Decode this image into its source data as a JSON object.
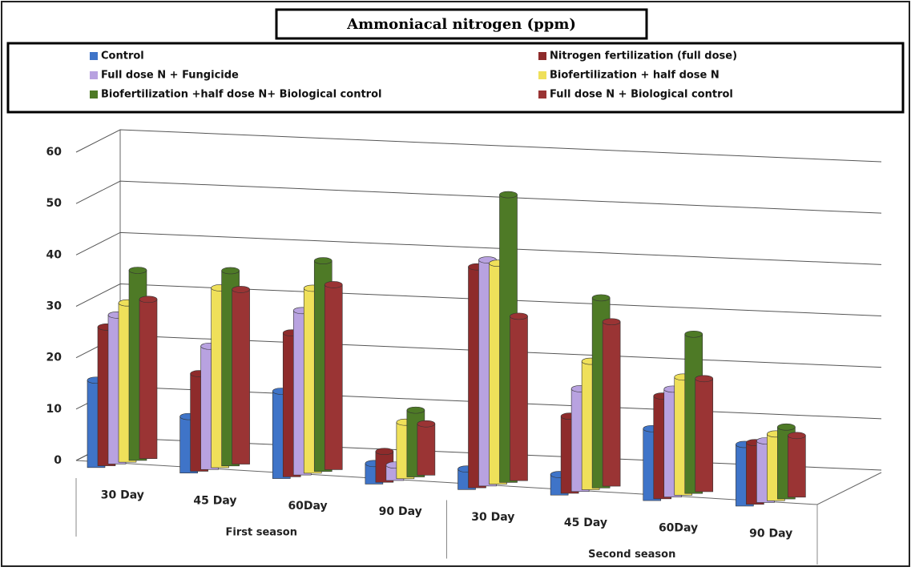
{
  "chart_data": {
    "type": "bar3d",
    "title": "Ammoniacal nitrogen (ppm)",
    "categories": [
      "30 Day",
      "45 Day",
      "60Day",
      "90 Day",
      "30 Day",
      "45 Day",
      "60Day",
      "90 Day"
    ],
    "category_groups": [
      "First season",
      "Second season"
    ],
    "series": [
      {
        "name": "Control",
        "color": "#3f74c8",
        "values": [
          17,
          11,
          17,
          4,
          4,
          4,
          14,
          12
        ]
      },
      {
        "name": "Nitrogen fertilization (full dose)",
        "color": "#8e2b2b",
        "values": [
          27,
          19,
          28,
          6,
          43,
          15,
          20,
          12
        ]
      },
      {
        "name": "Full dose N + Fungicide",
        "color": "#b8a2e0",
        "values": [
          29,
          24,
          32,
          3,
          44,
          20,
          21,
          12
        ]
      },
      {
        "name": "Biofertilization + half dose N",
        "color": "#efe05a",
        "values": [
          31,
          35,
          36,
          11,
          43,
          25,
          23,
          13
        ]
      },
      {
        "name": "Biofertilization +half dose N+ Biological control",
        "color": "#4e7a26",
        "values": [
          37,
          38,
          41,
          13,
          56,
          37,
          31,
          14
        ]
      },
      {
        "name": "Full dose N + Biological control",
        "color": "#9a3434",
        "values": [
          31,
          34,
          36,
          10,
          32,
          32,
          22,
          12
        ]
      }
    ],
    "ylim": [
      0,
      60
    ],
    "yticks": [
      0,
      10,
      20,
      30,
      40,
      50,
      60
    ],
    "grid": true
  }
}
